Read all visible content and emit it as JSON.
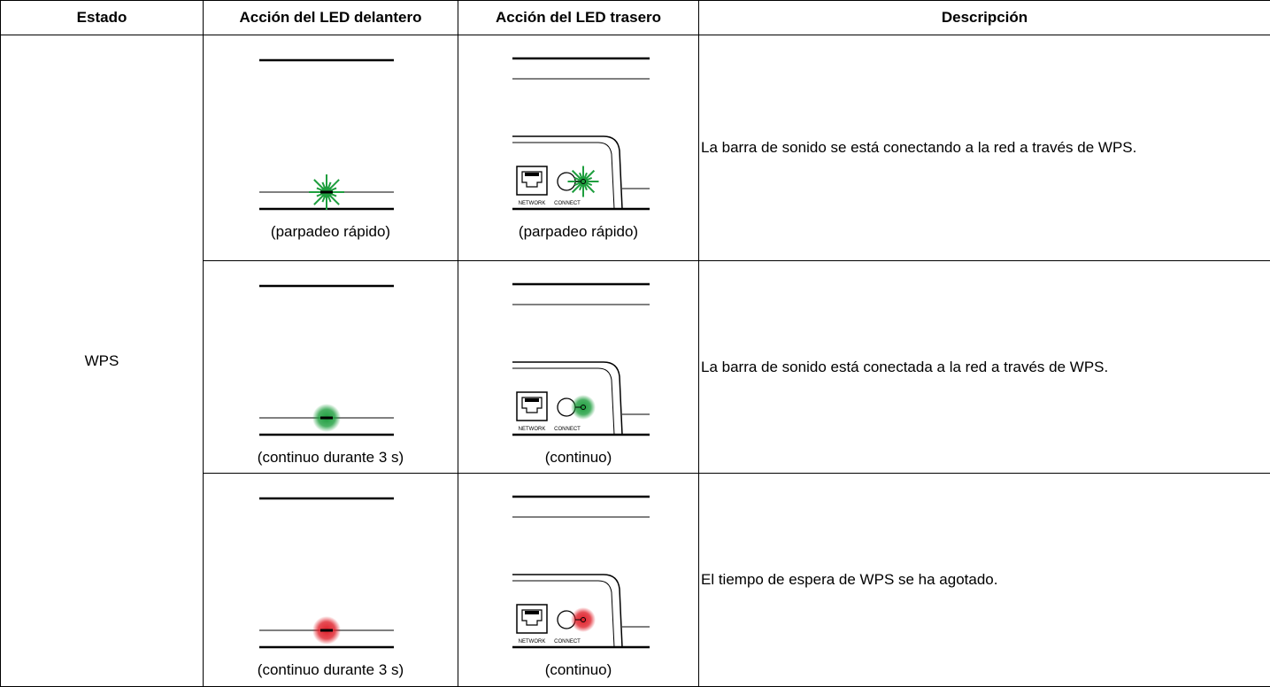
{
  "header": [
    "Estado",
    "Acción del LED delantero",
    "Acción del LED trasero",
    "Descripción"
  ],
  "state": "WPS",
  "labels": {
    "network": "NETWORK",
    "connect": "CONNECT"
  },
  "rows": [
    {
      "front_caption": "(parpadeo rápido)",
      "rear_caption": "(parpadeo rápido)",
      "description": "La barra de sonido se está conectando a la red a través de WPS.",
      "led": {
        "color": "#1e9e3e",
        "blink": true
      }
    },
    {
      "front_caption": "(continuo durante 3 s)",
      "rear_caption": "(continuo)",
      "description": "La barra de sonido está conectada a la red a través de WPS.",
      "led": {
        "color": "#1e9e3e",
        "blink": false
      }
    },
    {
      "front_caption": "(continuo durante 3 s)",
      "rear_caption": "(continuo)",
      "description": "El tiempo de espera de WPS se ha agotado.",
      "led": {
        "color": "#e0202a",
        "blink": false
      }
    }
  ]
}
